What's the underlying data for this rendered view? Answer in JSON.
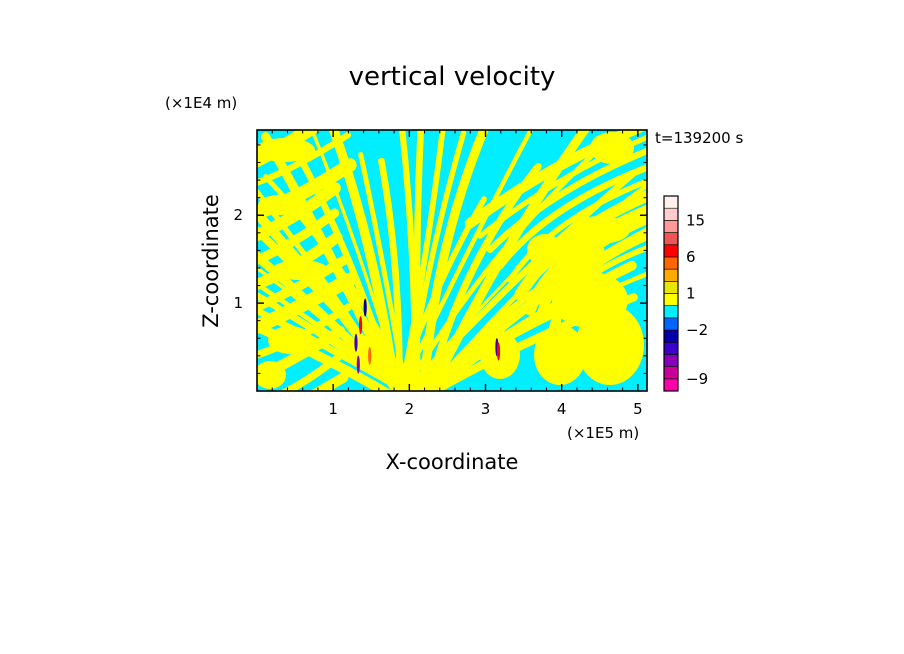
{
  "chart_data": {
    "type": "heatmap",
    "title": "vertical velocity",
    "xlabel": "X-coordinate",
    "ylabel": "Z-coordinate",
    "x_unit": "(×1E5 m)",
    "y_unit": "(×1E4 m)",
    "time_label": "t=139200 s",
    "xlim": [
      0,
      5.12
    ],
    "ylim": [
      0,
      2.97
    ],
    "x_ticks": [
      1,
      2,
      3,
      4,
      5
    ],
    "x_tick_labels": [
      "1",
      "2",
      "3",
      "4",
      "5"
    ],
    "y_ticks": [
      1,
      2
    ],
    "y_tick_labels": [
      "1",
      "2"
    ],
    "field_colors": {
      "positive_weak": "#ffff00",
      "negative_weak": "#00eeff"
    },
    "colorbar": {
      "levels": [
        -12,
        -9,
        -6,
        -4,
        -3,
        -2,
        -1,
        0,
        1,
        2,
        3,
        6,
        9,
        12,
        15,
        18,
        24
      ],
      "colors": [
        "#ff00aa",
        "#cc0099",
        "#8a00b8",
        "#3a00cc",
        "#0000aa",
        "#0066ff",
        "#00eeff",
        "#ffff00",
        "#e6e600",
        "#ffaa00",
        "#ff6600",
        "#ff0000",
        "#ee5555",
        "#ff9999",
        "#ffcccc",
        "#fff0ee"
      ],
      "tick_values": [
        15,
        6,
        1,
        -2,
        -9
      ],
      "tick_labels": [
        "15",
        "6",
        "1",
        "−2",
        "−9"
      ]
    }
  }
}
